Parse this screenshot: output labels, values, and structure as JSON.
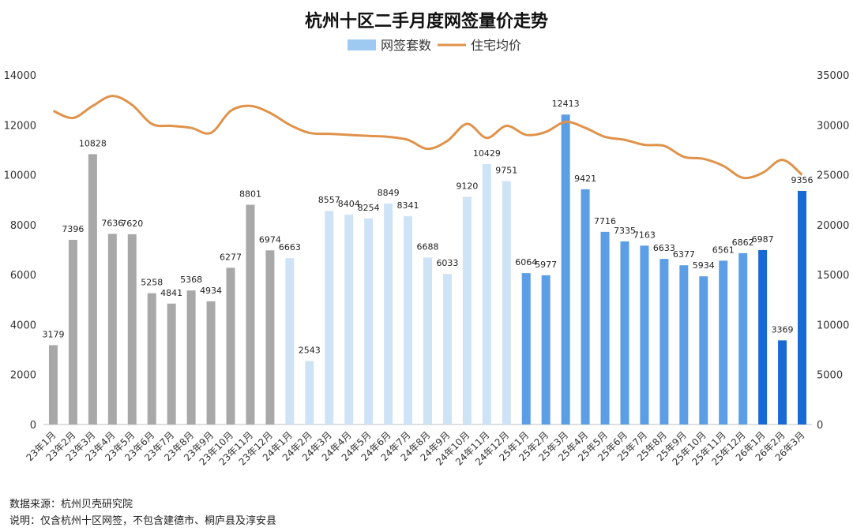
{
  "chart_data": {
    "type": "bar+line",
    "title": "杭州十区二手月度网签量价走势",
    "legend": [
      {
        "name": "网签套数",
        "color": "#9ec9f0",
        "kind": "bar"
      },
      {
        "name": "住宅均价",
        "color": "#e0924a",
        "kind": "line"
      }
    ],
    "categories": [
      "23年1月",
      "23年2月",
      "23年3月",
      "23年4月",
      "23年5月",
      "23年6月",
      "23年7月",
      "23年8月",
      "23年9月",
      "23年10月",
      "23年11月",
      "23年12月",
      "24年1月",
      "24年2月",
      "24年3月",
      "24年4月",
      "24年5月",
      "24年6月",
      "24年7月",
      "24年8月",
      "24年9月",
      "24年10月",
      "24年11月",
      "24年12月",
      "25年1月",
      "25年2月",
      "25年3月",
      "25年4月",
      "25年5月",
      "25年6月",
      "25年7月",
      "25年8月",
      "25年9月",
      "25年10月",
      "25年11月",
      "25年12月",
      "26年1月",
      "26年2月",
      "26年3月"
    ],
    "series": [
      {
        "name": "网签套数",
        "axis": "left",
        "values": [
          3179,
          7396,
          10828,
          7636,
          7620,
          5258,
          4841,
          5368,
          4934,
          6277,
          8801,
          6974,
          6663,
          2543,
          8557,
          8404,
          8254,
          8849,
          8341,
          6688,
          6033,
          9120,
          10429,
          9751,
          6064,
          5977,
          12413,
          9421,
          7716,
          7335,
          7163,
          6633,
          6377,
          5934,
          6561,
          6862,
          6987,
          3369,
          9356
        ],
        "colors": [
          "#a8a8a8",
          "#a8a8a8",
          "#a8a8a8",
          "#a8a8a8",
          "#a8a8a8",
          "#a8a8a8",
          "#a8a8a8",
          "#a8a8a8",
          "#a8a8a8",
          "#a8a8a8",
          "#a8a8a8",
          "#a8a8a8",
          "#cfe3f7",
          "#cfe3f7",
          "#cfe3f7",
          "#cfe3f7",
          "#cfe3f7",
          "#cfe3f7",
          "#cfe3f7",
          "#cfe3f7",
          "#cfe3f7",
          "#cfe3f7",
          "#cfe3f7",
          "#cfe3f7",
          "#5b9ee6",
          "#5b9ee6",
          "#5b9ee6",
          "#5b9ee6",
          "#5b9ee6",
          "#5b9ee6",
          "#5b9ee6",
          "#5b9ee6",
          "#5b9ee6",
          "#5b9ee6",
          "#5b9ee6",
          "#5b9ee6",
          "#1769d6",
          "#1769d6",
          "#1769d6"
        ]
      },
      {
        "name": "住宅均价",
        "axis": "right",
        "values": [
          31400,
          30700,
          31900,
          32900,
          32000,
          30100,
          29900,
          29700,
          29200,
          31400,
          31900,
          31200,
          30000,
          29200,
          29100,
          29000,
          28900,
          28800,
          28500,
          27600,
          28400,
          30100,
          28700,
          29900,
          29000,
          29300,
          30300,
          29700,
          28800,
          28500,
          28000,
          27900,
          26800,
          26600,
          25900,
          24700,
          25200,
          26500,
          25000
        ]
      }
    ],
    "y_left": {
      "min": 0,
      "max": 14000,
      "ticks": [
        0,
        2000,
        4000,
        6000,
        8000,
        10000,
        12000,
        14000
      ]
    },
    "y_right": {
      "min": 0,
      "max": 35000,
      "ticks": [
        0,
        5000,
        10000,
        15000,
        20000,
        25000,
        30000,
        35000
      ]
    },
    "grid": false,
    "legend_position": "top-center"
  },
  "footnotes": {
    "source": "数据来源：杭州贝壳研究院",
    "note": "说明：仅含杭州十区网签，不包含建德市、桐庐县及淳安县"
  }
}
